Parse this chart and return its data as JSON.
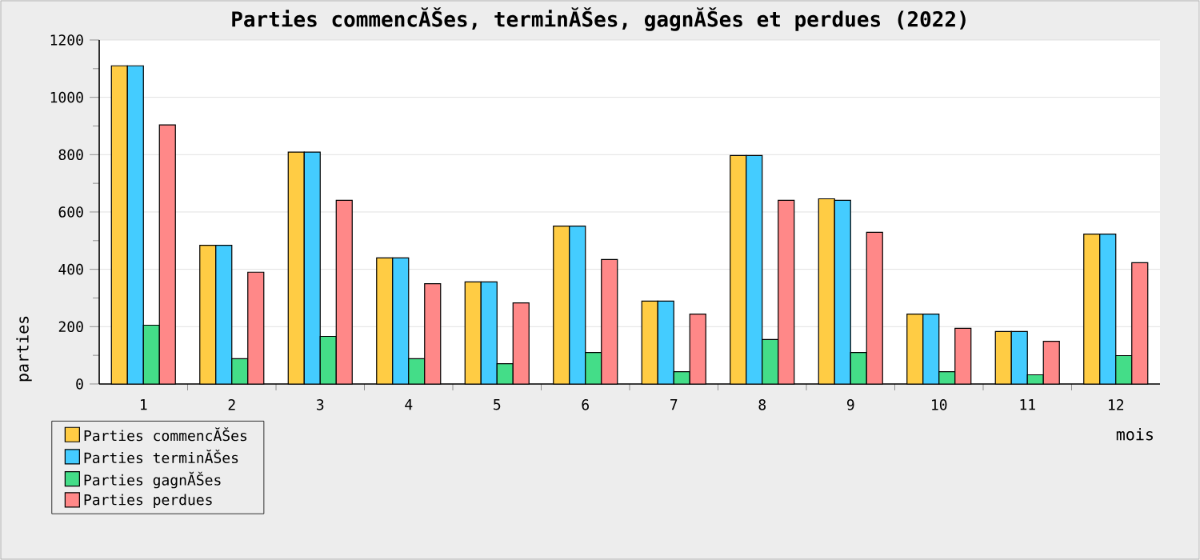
{
  "chart_data": {
    "type": "bar",
    "title": "Parties commencĂŠes, terminĂŠes, gagnĂŠes et perdues (2022)",
    "xlabel": "mois",
    "ylabel": "parties",
    "categories": [
      "1",
      "2",
      "3",
      "4",
      "5",
      "6",
      "7",
      "8",
      "9",
      "10",
      "11",
      "12"
    ],
    "series": [
      {
        "name": "Parties commencĂŠes",
        "color": "#ffcc44",
        "values": [
          1110,
          484,
          809,
          440,
          356,
          551,
          289,
          797,
          646,
          244,
          183,
          523
        ]
      },
      {
        "name": "Parties terminĂŠes",
        "color": "#44ccff",
        "values": [
          1110,
          484,
          809,
          440,
          356,
          551,
          289,
          797,
          641,
          244,
          183,
          523
        ]
      },
      {
        "name": "Parties gagnĂŠes",
        "color": "#44dd88",
        "values": [
          205,
          88,
          166,
          88,
          71,
          110,
          43,
          155,
          110,
          43,
          32,
          99
        ]
      },
      {
        "name": "Parties perdues",
        "color": "#ff8888",
        "values": [
          904,
          390,
          641,
          350,
          283,
          434,
          244,
          641,
          529,
          194,
          149,
          423
        ]
      }
    ],
    "ylim": [
      0,
      1200
    ],
    "yticks": [
      0,
      200,
      400,
      600,
      800,
      1000,
      1200
    ],
    "grid": "y",
    "legend": "bottom left"
  }
}
